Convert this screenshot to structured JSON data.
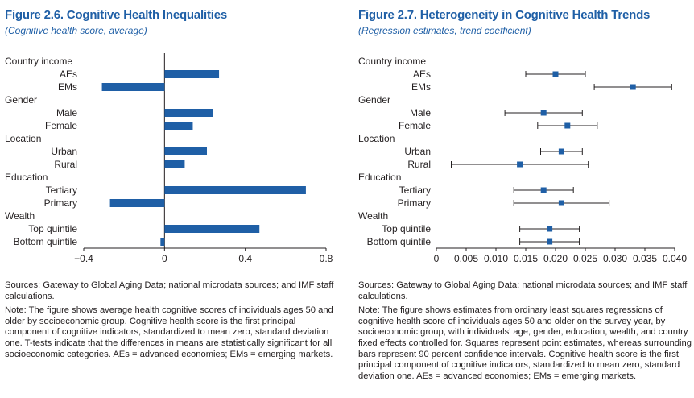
{
  "colors": {
    "accent": "#1f5fa6",
    "bar": "#1f5fa6"
  },
  "left": {
    "title": "Figure 2.6. Cognitive Health Inequalities",
    "subtitle": "(Cognitive health score, average)",
    "source": "Sources: Gateway to Global Aging Data; national microdata sources; and IMF staff calculations.",
    "note": "Note: The figure shows average health cognitive scores of individuals ages 50 and older by socioeconomic group. Cognitive health score is the first principal component of cognitive indicators, standardized to mean zero, standard deviation one. T-tests indicate that the differences in means are statistically significant for all socioeconomic categories. AEs = advanced economies; EMs = emerging markets."
  },
  "right": {
    "title": "Figure 2.7. Heterogeneity in Cognitive Health Trends",
    "subtitle": "(Regression estimates, trend coefficient)",
    "source": "Sources: Gateway to Global Aging Data; national microdata sources; and IMF staff calculations.",
    "note": "Note: The figure shows estimates from ordinary least squares regressions of cognitive health score of individuals ages 50 and older on the survey year, by socioeconomic group, with individuals’ age, gender, education, wealth, and country fixed effects controlled for. Squares represent point estimates, whereas surrounding bars represent 90 percent confidence intervals. Cognitive health score is the first principal component of cognitive indicators, standardized to mean zero, standard deviation one. AEs = advanced economies; EMs = emerging markets."
  },
  "chart_data": [
    {
      "type": "bar",
      "orientation": "horizontal",
      "title": "Figure 2.6. Cognitive Health Inequalities",
      "subtitle": "(Cognitive health score, average)",
      "rows": [
        {
          "label": "Country income",
          "header": true
        },
        {
          "label": "AEs",
          "value": 0.27
        },
        {
          "label": "EMs",
          "value": -0.31
        },
        {
          "label": "Gender",
          "header": true
        },
        {
          "label": "Male",
          "value": 0.24
        },
        {
          "label": "Female",
          "value": 0.14
        },
        {
          "label": "Location",
          "header": true
        },
        {
          "label": "Urban",
          "value": 0.21
        },
        {
          "label": "Rural",
          "value": 0.1
        },
        {
          "label": "Education",
          "header": true
        },
        {
          "label": "Tertiary",
          "value": 0.7
        },
        {
          "label": "Primary",
          "value": -0.27
        },
        {
          "label": "Wealth",
          "header": true
        },
        {
          "label": "Top quintile",
          "value": 0.47
        },
        {
          "label": "Bottom quintile",
          "value": -0.02
        }
      ],
      "xlim": [
        -0.4,
        0.8
      ],
      "xticks": [
        -0.4,
        0,
        0.4,
        0.8
      ],
      "xtick_labels": [
        "−0.4",
        "0",
        "0.4",
        "0.8"
      ],
      "grid": false
    },
    {
      "type": "scatter",
      "subtype": "point-estimate with confidence interval",
      "title": "Figure 2.7. Heterogeneity in Cognitive Health Trends",
      "subtitle": "(Regression estimates, trend coefficient)",
      "rows": [
        {
          "label": "Country income",
          "header": true
        },
        {
          "label": "AEs",
          "value": 0.02,
          "low": 0.015,
          "high": 0.025
        },
        {
          "label": "EMs",
          "value": 0.033,
          "low": 0.0265,
          "high": 0.0395
        },
        {
          "label": "Gender",
          "header": true
        },
        {
          "label": "Male",
          "value": 0.018,
          "low": 0.0115,
          "high": 0.0245
        },
        {
          "label": "Female",
          "value": 0.022,
          "low": 0.017,
          "high": 0.027
        },
        {
          "label": "Location",
          "header": true
        },
        {
          "label": "Urban",
          "value": 0.021,
          "low": 0.0175,
          "high": 0.0245
        },
        {
          "label": "Rural",
          "value": 0.014,
          "low": 0.0025,
          "high": 0.0255
        },
        {
          "label": "Education",
          "header": true
        },
        {
          "label": "Tertiary",
          "value": 0.018,
          "low": 0.013,
          "high": 0.023
        },
        {
          "label": "Primary",
          "value": 0.021,
          "low": 0.013,
          "high": 0.029
        },
        {
          "label": "Wealth",
          "header": true
        },
        {
          "label": "Top quintile",
          "value": 0.019,
          "low": 0.014,
          "high": 0.024
        },
        {
          "label": "Bottom quintile",
          "value": 0.019,
          "low": 0.014,
          "high": 0.024
        }
      ],
      "xlim": [
        0,
        0.04
      ],
      "xticks": [
        0,
        0.005,
        0.01,
        0.015,
        0.02,
        0.025,
        0.03,
        0.035,
        0.04
      ],
      "xtick_labels": [
        "0",
        "0.005",
        "0.010",
        "0.015",
        "0.020",
        "0.025",
        "0.030",
        "0.035",
        "0.040"
      ],
      "grid": false
    }
  ]
}
